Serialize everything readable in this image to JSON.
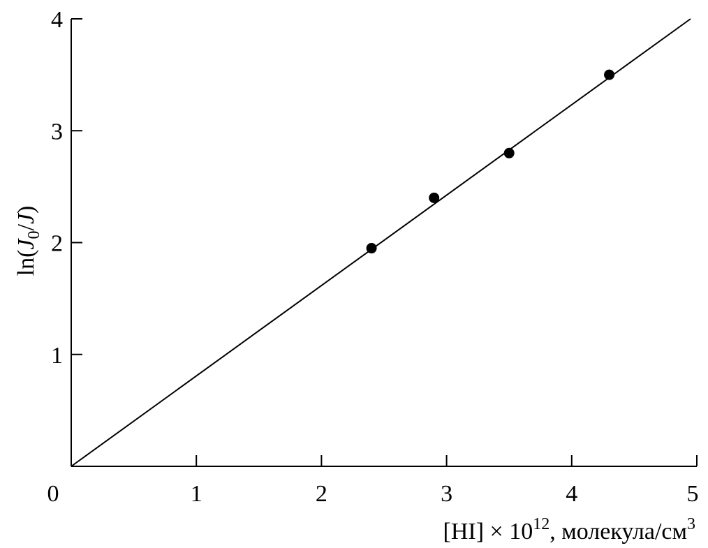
{
  "chart_data": {
    "type": "scatter",
    "xlabel": {
      "prefix": "[HI] × 10",
      "exponent": "12",
      "unit": ", молекула/см",
      "unit_exponent": "3"
    },
    "ylabel": {
      "prefix": "ln(",
      "J": "J",
      "sub": "0",
      "mid": "/",
      "J2": "J",
      "suffix": ")"
    },
    "xlim": [
      0,
      5
    ],
    "ylim": [
      0,
      4
    ],
    "x_ticks": [
      0,
      1,
      2,
      3,
      4,
      5
    ],
    "x_tick_labels": [
      "0",
      "1",
      "2",
      "3",
      "4",
      "5"
    ],
    "y_ticks": [
      1,
      2,
      3,
      4
    ],
    "y_tick_labels": [
      "1",
      "2",
      "3",
      "4"
    ],
    "grid": false,
    "points": [
      {
        "x": 2.4,
        "y": 1.95
      },
      {
        "x": 2.9,
        "y": 2.4
      },
      {
        "x": 3.5,
        "y": 2.8
      },
      {
        "x": 4.3,
        "y": 3.5
      }
    ],
    "fit_line": {
      "x": [
        0,
        4.95
      ],
      "y": [
        0,
        4.0
      ]
    },
    "colors": {
      "marks": "#000000",
      "axes": "#000000"
    }
  }
}
